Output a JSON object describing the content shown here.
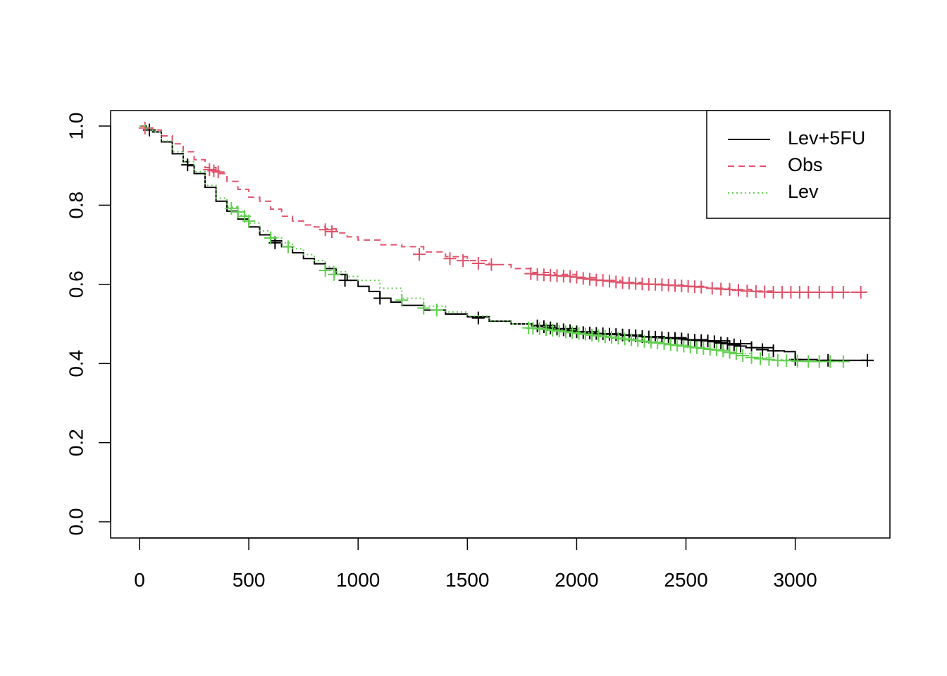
{
  "chart_data": {
    "type": "line",
    "title": "",
    "xlabel": "",
    "ylabel": "",
    "xlim": [
      0,
      3330
    ],
    "ylim": [
      0,
      1
    ],
    "x_ticks": [
      "0",
      "500",
      "1000",
      "1500",
      "2000",
      "2500",
      "3000"
    ],
    "y_ticks": [
      "0.0",
      "0.2",
      "0.4",
      "0.6",
      "0.8",
      "1.0"
    ],
    "grid": false,
    "legend_position": "top-right",
    "series": [
      {
        "name": "Lev+5FU",
        "color": "#000000",
        "dash": "solid",
        "x": [
          0,
          30,
          60,
          100,
          150,
          200,
          220,
          250,
          300,
          350,
          400,
          450,
          500,
          550,
          600,
          650,
          700,
          750,
          800,
          850,
          900,
          950,
          1000,
          1050,
          1100,
          1150,
          1200,
          1300,
          1400,
          1500,
          1600,
          1700,
          1800,
          1900,
          2000,
          2100,
          2200,
          2300,
          2400,
          2500,
          2600,
          2700,
          2800,
          2900,
          2950,
          3000,
          3100,
          3200,
          3330
        ],
        "y": [
          1.0,
          0.995,
          0.985,
          0.96,
          0.93,
          0.91,
          0.9,
          0.88,
          0.845,
          0.81,
          0.785,
          0.765,
          0.745,
          0.725,
          0.71,
          0.695,
          0.68,
          0.665,
          0.652,
          0.64,
          0.625,
          0.61,
          0.595,
          0.582,
          0.565,
          0.555,
          0.547,
          0.535,
          0.525,
          0.518,
          0.507,
          0.5,
          0.496,
          0.488,
          0.48,
          0.475,
          0.472,
          0.468,
          0.465,
          0.46,
          0.457,
          0.45,
          0.44,
          0.432,
          0.43,
          0.41,
          0.408,
          0.408,
          0.408
        ],
        "censor_x": [
          45,
          220,
          620,
          940,
          1100,
          1550,
          1820,
          1850,
          1880,
          1910,
          1940,
          1970,
          2000,
          2030,
          2060,
          2090,
          2120,
          2150,
          2180,
          2210,
          2240,
          2270,
          2300,
          2330,
          2360,
          2390,
          2420,
          2450,
          2480,
          2510,
          2540,
          2570,
          2600,
          2630,
          2660,
          2690,
          2720,
          2750,
          2800,
          2850,
          2900,
          3000,
          3150,
          3330
        ],
        "censor_y": [
          0.99,
          0.902,
          0.705,
          0.61,
          0.565,
          0.515,
          0.495,
          0.493,
          0.49,
          0.487,
          0.485,
          0.483,
          0.48,
          0.478,
          0.477,
          0.476,
          0.475,
          0.474,
          0.473,
          0.472,
          0.471,
          0.47,
          0.468,
          0.467,
          0.466,
          0.465,
          0.464,
          0.463,
          0.462,
          0.46,
          0.459,
          0.458,
          0.457,
          0.455,
          0.452,
          0.45,
          0.447,
          0.444,
          0.44,
          0.435,
          0.432,
          0.41,
          0.408,
          0.408
        ]
      },
      {
        "name": "Obs",
        "color": "#DF536B",
        "dash": "dashed",
        "x": [
          0,
          30,
          60,
          100,
          150,
          200,
          250,
          300,
          350,
          400,
          450,
          500,
          550,
          600,
          650,
          700,
          750,
          800,
          850,
          900,
          950,
          1000,
          1100,
          1200,
          1300,
          1400,
          1500,
          1600,
          1700,
          1800,
          1900,
          2000,
          2100,
          2200,
          2300,
          2400,
          2500,
          2600,
          2700,
          2800,
          2900,
          3000,
          3100,
          3200,
          3300
        ],
        "y": [
          1.0,
          0.995,
          0.99,
          0.975,
          0.955,
          0.935,
          0.915,
          0.895,
          0.88,
          0.86,
          0.84,
          0.82,
          0.81,
          0.79,
          0.772,
          0.76,
          0.75,
          0.745,
          0.74,
          0.73,
          0.72,
          0.712,
          0.7,
          0.695,
          0.682,
          0.67,
          0.66,
          0.65,
          0.64,
          0.63,
          0.625,
          0.617,
          0.61,
          0.605,
          0.6,
          0.598,
          0.595,
          0.59,
          0.587,
          0.583,
          0.58,
          0.58,
          0.58,
          0.58,
          0.58
        ],
        "censor_x": [
          25,
          320,
          340,
          360,
          850,
          880,
          1280,
          1420,
          1480,
          1550,
          1610,
          1790,
          1820,
          1850,
          1880,
          1910,
          1940,
          1970,
          2000,
          2030,
          2060,
          2090,
          2120,
          2150,
          2180,
          2210,
          2240,
          2270,
          2300,
          2330,
          2360,
          2390,
          2420,
          2450,
          2480,
          2510,
          2540,
          2570,
          2620,
          2660,
          2700,
          2740,
          2780,
          2820,
          2860,
          2900,
          2940,
          2980,
          3020,
          3060,
          3110,
          3170,
          3220,
          3300
        ],
        "censor_y": [
          0.995,
          0.89,
          0.887,
          0.884,
          0.738,
          0.733,
          0.676,
          0.665,
          0.66,
          0.653,
          0.65,
          0.627,
          0.625,
          0.624,
          0.623,
          0.622,
          0.621,
          0.62,
          0.618,
          0.615,
          0.613,
          0.611,
          0.61,
          0.608,
          0.606,
          0.604,
          0.603,
          0.602,
          0.601,
          0.6,
          0.6,
          0.599,
          0.598,
          0.597,
          0.596,
          0.595,
          0.594,
          0.593,
          0.59,
          0.588,
          0.587,
          0.585,
          0.583,
          0.582,
          0.581,
          0.58,
          0.58,
          0.58,
          0.58,
          0.58,
          0.58,
          0.58,
          0.58,
          0.58
        ]
      },
      {
        "name": "Lev",
        "color": "#61D04F",
        "dash": "dotted",
        "x": [
          0,
          30,
          60,
          100,
          150,
          200,
          250,
          300,
          350,
          400,
          450,
          500,
          550,
          600,
          650,
          700,
          750,
          800,
          850,
          900,
          950,
          1000,
          1100,
          1200,
          1300,
          1400,
          1500,
          1600,
          1700,
          1800,
          1900,
          2000,
          2100,
          2200,
          2300,
          2400,
          2500,
          2600,
          2700,
          2800,
          2900,
          3000,
          3100,
          3200,
          3250
        ],
        "y": [
          1.0,
          0.995,
          0.985,
          0.962,
          0.935,
          0.91,
          0.885,
          0.85,
          0.818,
          0.795,
          0.775,
          0.755,
          0.735,
          0.718,
          0.705,
          0.69,
          0.675,
          0.66,
          0.645,
          0.632,
          0.62,
          0.61,
          0.59,
          0.565,
          0.545,
          0.53,
          0.52,
          0.508,
          0.5,
          0.493,
          0.485,
          0.478,
          0.47,
          0.463,
          0.455,
          0.447,
          0.44,
          0.435,
          0.425,
          0.415,
          0.41,
          0.407,
          0.405,
          0.405,
          0.405
        ],
        "censor_x": [
          420,
          450,
          480,
          500,
          600,
          680,
          850,
          890,
          1200,
          1300,
          1360,
          1780,
          1800,
          1830,
          1860,
          1890,
          1920,
          1950,
          1980,
          2010,
          2040,
          2070,
          2100,
          2130,
          2160,
          2190,
          2220,
          2250,
          2280,
          2310,
          2340,
          2370,
          2400,
          2430,
          2460,
          2490,
          2520,
          2550,
          2580,
          2610,
          2640,
          2670,
          2700,
          2730,
          2760,
          2800,
          2840,
          2880,
          2920,
          2960,
          3010,
          3060,
          3110,
          3160,
          3220
        ],
        "censor_y": [
          0.792,
          0.783,
          0.772,
          0.76,
          0.717,
          0.695,
          0.635,
          0.625,
          0.56,
          0.54,
          0.535,
          0.49,
          0.489,
          0.488,
          0.486,
          0.484,
          0.482,
          0.48,
          0.478,
          0.476,
          0.474,
          0.472,
          0.47,
          0.468,
          0.466,
          0.464,
          0.462,
          0.46,
          0.458,
          0.456,
          0.454,
          0.452,
          0.45,
          0.448,
          0.446,
          0.444,
          0.442,
          0.44,
          0.438,
          0.436,
          0.434,
          0.432,
          0.428,
          0.425,
          0.42,
          0.415,
          0.412,
          0.41,
          0.408,
          0.407,
          0.406,
          0.405,
          0.405,
          0.405,
          0.405
        ]
      }
    ]
  }
}
